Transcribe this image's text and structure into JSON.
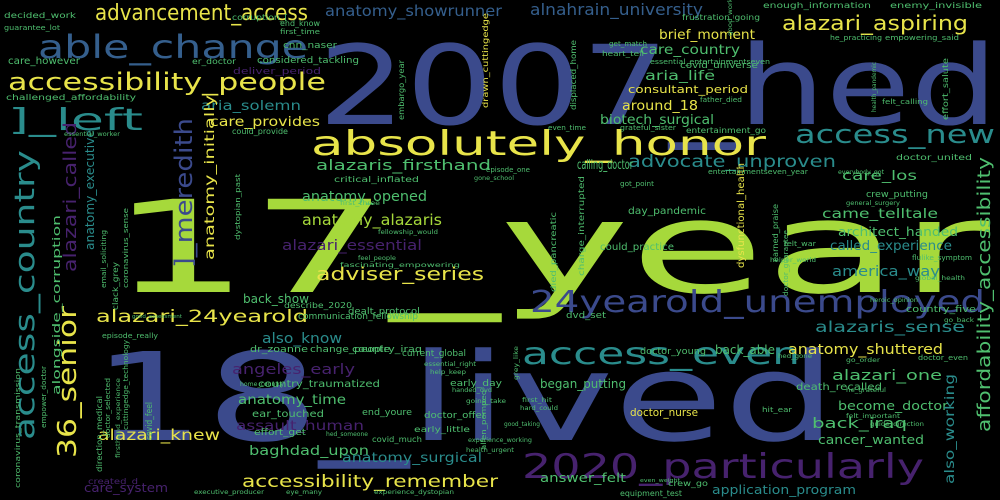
{
  "background": "#000000",
  "palette": {
    "navy": "#3b4a8c",
    "lime": "#a6d93b",
    "teal": "#2a8c8c",
    "green": "#4fbf6f",
    "yellow": "#e8e44a",
    "purple": "#47226e",
    "blue": "#355f8d",
    "dark": "#3b2f6b"
  },
  "words": [
    "17_year",
    "18_lived",
    "2007_hed",
    "absolutely_honor",
    "24yearold_unemployed",
    "2020_particularly",
    "able_change",
    "accessibility_people",
    "advancement_access",
    "access_new",
    "access_even",
    "access_country",
    "affordability_accessibility",
    "36_senior",
    "alazari_aspiring",
    "alnahrain_university",
    "advocate_unproven",
    "anatomy_showrunner",
    "adviser_series",
    "alazari_24yearold",
    "accessibility_remember",
    "]_left",
    "]_meredith",
    "alazari_called",
    "alazaris_firsthand",
    "anatomy_opened",
    "anatomy_alazaris",
    "alazari_essential",
    "alazari_knew",
    "angeles_early",
    "anatomy_time",
    "assault_human",
    "baghdad_upon",
    "anatomy_surgical",
    "alazaris_sense",
    "anatomy_shuttered",
    "alazari_one",
    "back_iraq",
    "become_doctor",
    "cancer_wanted",
    "america_way",
    "called_experience",
    "architect_handed",
    "came_telltale",
    "care_los",
    "care_country",
    "brief_moment",
    "aria_life",
    "consultant_period",
    "around_18",
    "biotech_surgical",
    "care_provides",
    "aria_solemn",
    "anatomy_initially",
    "also_working",
    "also_know",
    "back_show",
    "country_traumatized",
    "ear_touched",
    "back_able",
    "began_putting",
    "answer_felt",
    "application_program",
    "care_system",
    "calling_doctor",
    "alongside_corruption",
    "anatomy_executive",
    "communication_fellowship",
    "country_iraq",
    "change_people",
    "dr_zoanne",
    "doctor_offer",
    "effort_get",
    "end_youre",
    "doctor_nurse",
    "current_global",
    "early_day",
    "death_recalled",
    "care_however",
    "cnn_naser",
    "considered_tackling",
    "deliver_period",
    "enough_information",
    "enemy_invisible",
    "decided_work",
    "guarantee_lot",
    "challenged_affordability",
    "embargo_year",
    "drawn_cuttingedge",
    "displaced_home",
    "critical_inflated",
    "dealt_protocol",
    "describe_2020",
    "dvd_set",
    "covid_feel",
    "direction_medical",
    "crew_go",
    "equipment_test",
    "doctor_young",
    "country_five",
    "covid_universe",
    "corruption_[",
    "end_know",
    "first_time",
    "frustration_going",
    "er_doctor",
    "get_match",
    "heart_tell",
    "essential_entertainmentseven",
    "empowering_said",
    "he_practicing",
    "father_died",
    "felt_calling",
    "effort_salute",
    "health_pandemic",
    "grateful_sister",
    "even_time",
    "entertainment_go",
    "doctor_united",
    "everybody_got",
    "crew_putting",
    "general_surgery",
    "flulike_symptom",
    "heroic_opinion",
    "global_health",
    "helper_world",
    "felt_war",
    "earned_praise",
    "day_pandemic",
    "could_practice",
    "got_point",
    "charge_interrupted",
    "died_pancreatic",
    "dysfunctional_health",
    "episode_one",
    "gone_school",
    "entertainmentseven_year",
    "first_three",
    "fellowship_would",
    "feel_people",
    "fascinating_empowering",
    "email_soliciting",
    "essential_worker",
    "coronavirus_sense",
    "clack_grey",
    "good_assessment",
    "episode_really",
    "dystopian_past",
    "could_provide",
    "coronavirus_transmission",
    "empower_doctor",
    "cuttingedge_technology",
    "doctor_selected",
    "firsthand_experience",
    "created_d",
    "executive_producer",
    "eye_many",
    "experience_dystopian",
    "doctor_guarantee",
    "good_work",
    "go_back",
    "go_order",
    "hed_gone",
    "he_grateful",
    "hit_ear",
    "felt_important",
    "guide_direction",
    "hard_could",
    "going_take",
    "experience_working",
    "help_keep",
    "grey_like",
    "good_taking",
    "health_urgent",
    "hed_someone",
    "covid_much",
    "early_little",
    "essential_right",
    "first_hit",
    "allen_pompeo",
    "handed_dvd",
    "doctor_even",
    "even_weight",
    "home_country"
  ]
}
